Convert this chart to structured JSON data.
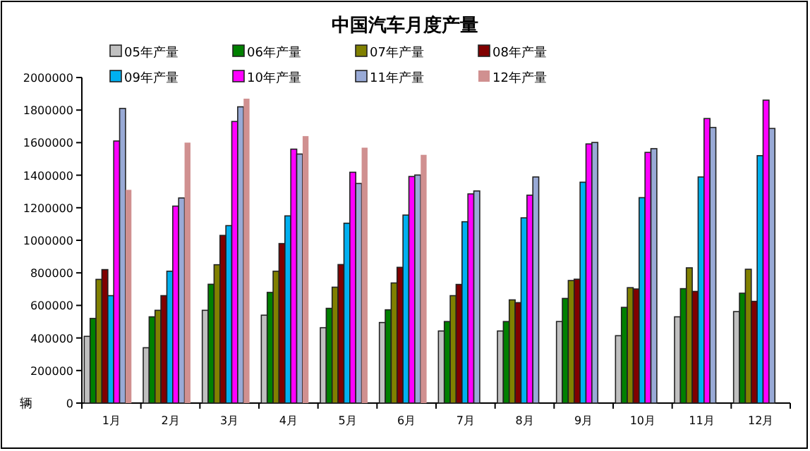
{
  "chart_data": {
    "type": "bar",
    "title": "中国汽车月度产量",
    "ylabel": "辆",
    "categories": [
      "1月",
      "2月",
      "3月",
      "4月",
      "5月",
      "6月",
      "7月",
      "8月",
      "9月",
      "10月",
      "11月",
      "12月"
    ],
    "ylim": [
      0,
      2000000
    ],
    "yticks": [
      0,
      200000,
      400000,
      600000,
      800000,
      1000000,
      1200000,
      1400000,
      1600000,
      1800000,
      2000000
    ],
    "grid": false,
    "legend": "top left",
    "series": [
      {
        "name": "05年产量",
        "color": "#c0c0c0",
        "values": [
          410000,
          340000,
          570000,
          540000,
          463000,
          495000,
          443000,
          443000,
          501000,
          414000,
          530000,
          562000
        ]
      },
      {
        "name": "06年产量",
        "color": "#008000",
        "values": [
          520000,
          530000,
          730000,
          680000,
          582000,
          573000,
          501000,
          501000,
          643000,
          588000,
          703000,
          675000
        ]
      },
      {
        "name": "07年产量",
        "color": "#808000",
        "values": [
          760000,
          570000,
          850000,
          810000,
          712000,
          738000,
          660000,
          634000,
          753000,
          709000,
          831000,
          822000
        ]
      },
      {
        "name": "08年产量",
        "color": "#800000",
        "values": [
          820000,
          660000,
          1030000,
          980000,
          851000,
          834000,
          729000,
          617000,
          761000,
          701000,
          686000,
          625000
        ]
      },
      {
        "name": "09年产量",
        "color": "#00b0f0",
        "values": [
          660000,
          810000,
          1090000,
          1150000,
          1105000,
          1155000,
          1114000,
          1138000,
          1357000,
          1262000,
          1389000,
          1520000
        ]
      },
      {
        "name": "10年产量",
        "color": "#ff00ff",
        "values": [
          1610000,
          1210000,
          1730000,
          1560000,
          1418000,
          1392000,
          1285000,
          1277000,
          1592000,
          1540000,
          1748000,
          1861000
        ]
      },
      {
        "name": "11年产量",
        "color": "#99aad6",
        "values": [
          1810000,
          1260000,
          1820000,
          1530000,
          1349000,
          1401000,
          1303000,
          1389000,
          1601000,
          1563000,
          1693000,
          1687000
        ]
      },
      {
        "name": "12年产量",
        "color": "#d09090",
        "values": [
          1310000,
          1600000,
          1870000,
          1640000,
          1569000,
          1525000,
          null,
          null,
          null,
          null,
          null,
          null
        ]
      }
    ]
  }
}
